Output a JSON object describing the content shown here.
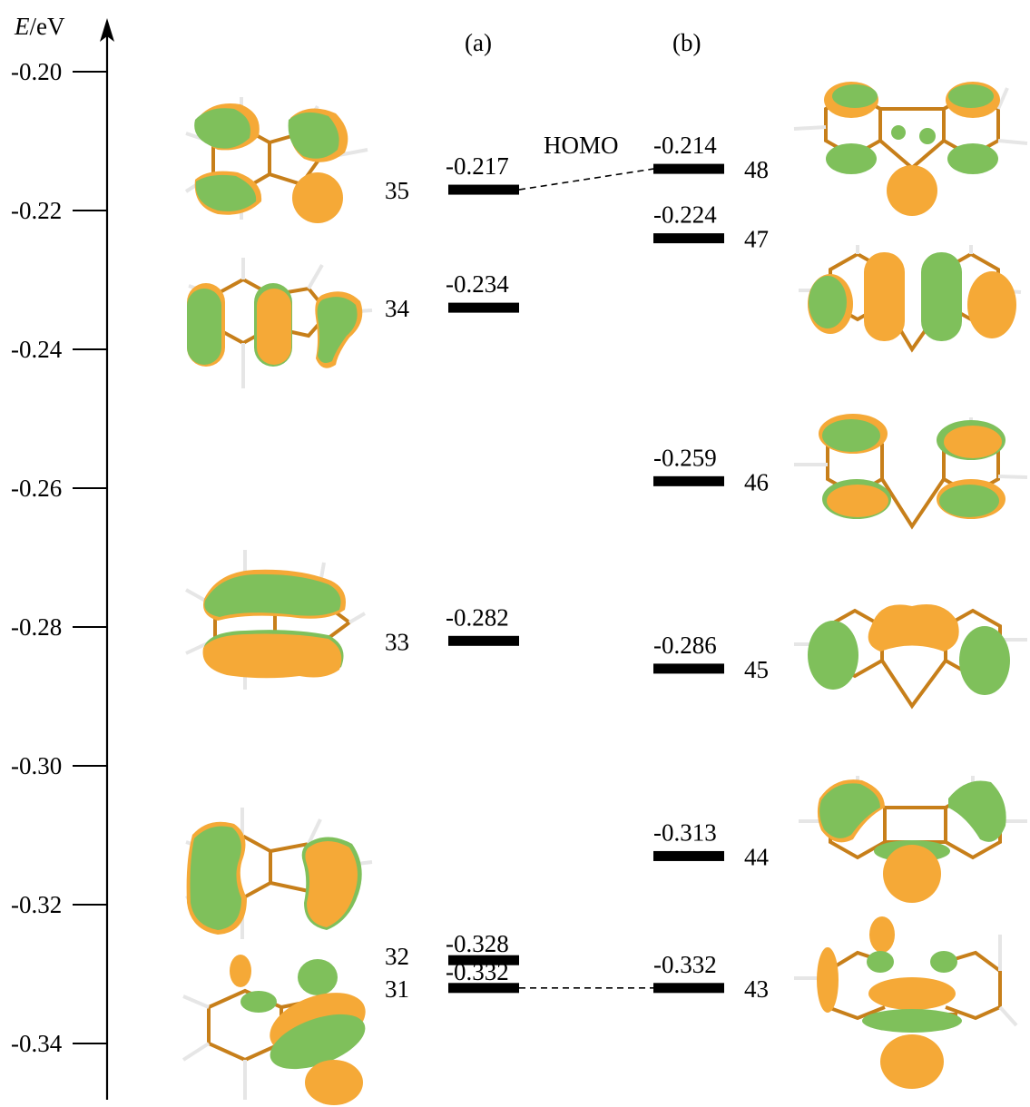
{
  "axis": {
    "label_symbol": "E",
    "label_unit": "/eV",
    "ticks": [
      "-0.20",
      "-0.22",
      "-0.24",
      "-0.26",
      "-0.28",
      "-0.30",
      "-0.32",
      "-0.34"
    ],
    "tick_values": [
      -0.2,
      -0.22,
      -0.24,
      -0.26,
      -0.28,
      -0.3,
      -0.32,
      -0.34
    ]
  },
  "panels": {
    "a": "(a)",
    "b": "(b)"
  },
  "homo_label": "HOMO",
  "levels_a": [
    {
      "index": "35",
      "energy": -0.217,
      "value_label": "-0.217"
    },
    {
      "index": "34",
      "energy": -0.234,
      "value_label": "-0.234"
    },
    {
      "index": "33",
      "energy": -0.282,
      "value_label": "-0.282"
    },
    {
      "index": "32",
      "energy": -0.328,
      "value_label": "-0.328"
    },
    {
      "index": "31",
      "energy": -0.332,
      "value_label": "-0.332"
    }
  ],
  "levels_b": [
    {
      "index": "48",
      "energy": -0.214,
      "value_label": "-0.214"
    },
    {
      "index": "47",
      "energy": -0.224,
      "value_label": "-0.224"
    },
    {
      "index": "46",
      "energy": -0.259,
      "value_label": "-0.259"
    },
    {
      "index": "45",
      "energy": -0.286,
      "value_label": "-0.286"
    },
    {
      "index": "44",
      "energy": -0.313,
      "value_label": "-0.313"
    },
    {
      "index": "43",
      "energy": -0.332,
      "value_label": "-0.332"
    }
  ],
  "connectors": [
    {
      "from": "35",
      "to": "48"
    },
    {
      "from": "31",
      "to": "43"
    }
  ],
  "colors": {
    "lobe_positive": "#f5a937",
    "lobe_negative": "#7fc05b",
    "bond": "#c77f1a",
    "hydrogen": "#e6e6e6"
  },
  "orbital_images": {
    "a": [
      "orbital-35",
      "orbital-34",
      "orbital-33",
      "orbital-32",
      "orbital-31"
    ],
    "b": [
      "orbital-48",
      "orbital-47",
      "orbital-46",
      "orbital-45",
      "orbital-44",
      "orbital-43"
    ]
  }
}
